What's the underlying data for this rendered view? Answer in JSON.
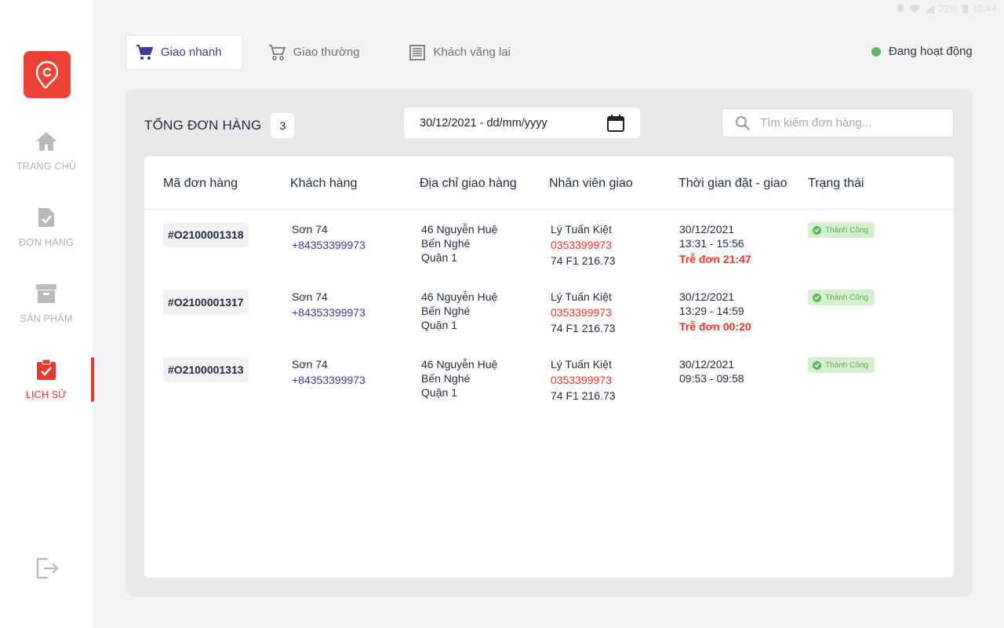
{
  "system_bar": {
    "battery": "22%",
    "time": "16:44"
  },
  "sidebar": {
    "items": [
      {
        "label": "TRANG CHỦ",
        "icon": "home-icon"
      },
      {
        "label": "ĐƠN HÀNG",
        "icon": "order-icon"
      },
      {
        "label": "SẢN PHẨM",
        "icon": "archive-icon"
      },
      {
        "label": "LỊCH SỬ",
        "icon": "history-icon",
        "active": true
      }
    ],
    "accent_color": "#e5372b"
  },
  "tabs": [
    {
      "label": "Giao nhanh",
      "active": true
    },
    {
      "label": "Giao thường"
    },
    {
      "label": "Khách vãng lai"
    }
  ],
  "online_status": "Đang hoạt động",
  "summary": {
    "label": "TỔNG ĐƠN HÀNG",
    "count": "3"
  },
  "date_filter": "30/12/2021 - dd/mm/yyyy",
  "search": {
    "placeholder": "Tìm kiếm đơn hàng..."
  },
  "table": {
    "headers": [
      "Mã đơn hàng",
      "Khách hàng",
      "Địa chỉ giao hàng",
      "Nhân viên giao",
      "Thời gian đặt - giao",
      "Trạng thái"
    ],
    "rows": [
      {
        "order_id": "#O2100001318",
        "customer_name": "Sơn 74",
        "customer_phone": "+84353399973",
        "address": [
          "46 Nguyễn Huệ",
          "Bến Nghé",
          "Quận 1"
        ],
        "staff_name": "Lý Tuấn Kiệt",
        "staff_phone": "0353399973",
        "staff_plate": "74 F1 216.73",
        "date": "30/12/2021",
        "time_range": "13:31 - 15:56",
        "late": "Trễ đơn 21:47",
        "status": "Thành Công"
      },
      {
        "order_id": "#O2100001317",
        "customer_name": "Sơn 74",
        "customer_phone": "+84353399973",
        "address": [
          "46 Nguyễn Huệ",
          "Bến Nghé",
          "Quận 1"
        ],
        "staff_name": "Lý Tuấn Kiệt",
        "staff_phone": "0353399973",
        "staff_plate": "74 F1 216.73",
        "date": "30/12/2021",
        "time_range": "13:29 - 14:59",
        "late": "Trễ đơn 00:20",
        "status": "Thành Công"
      },
      {
        "order_id": "#O2100001313",
        "customer_name": "Sơn 74",
        "customer_phone": "+84353399973",
        "address": [
          "46 Nguyễn Huệ",
          "Bến Nghé",
          "Quận 1"
        ],
        "staff_name": "Lý Tuấn Kiệt",
        "staff_phone": "0353399973",
        "staff_plate": "74 F1 216.73",
        "date": "30/12/2021",
        "time_range": "09:53 - 09:58",
        "late": "",
        "status": "Thành Công"
      }
    ]
  }
}
